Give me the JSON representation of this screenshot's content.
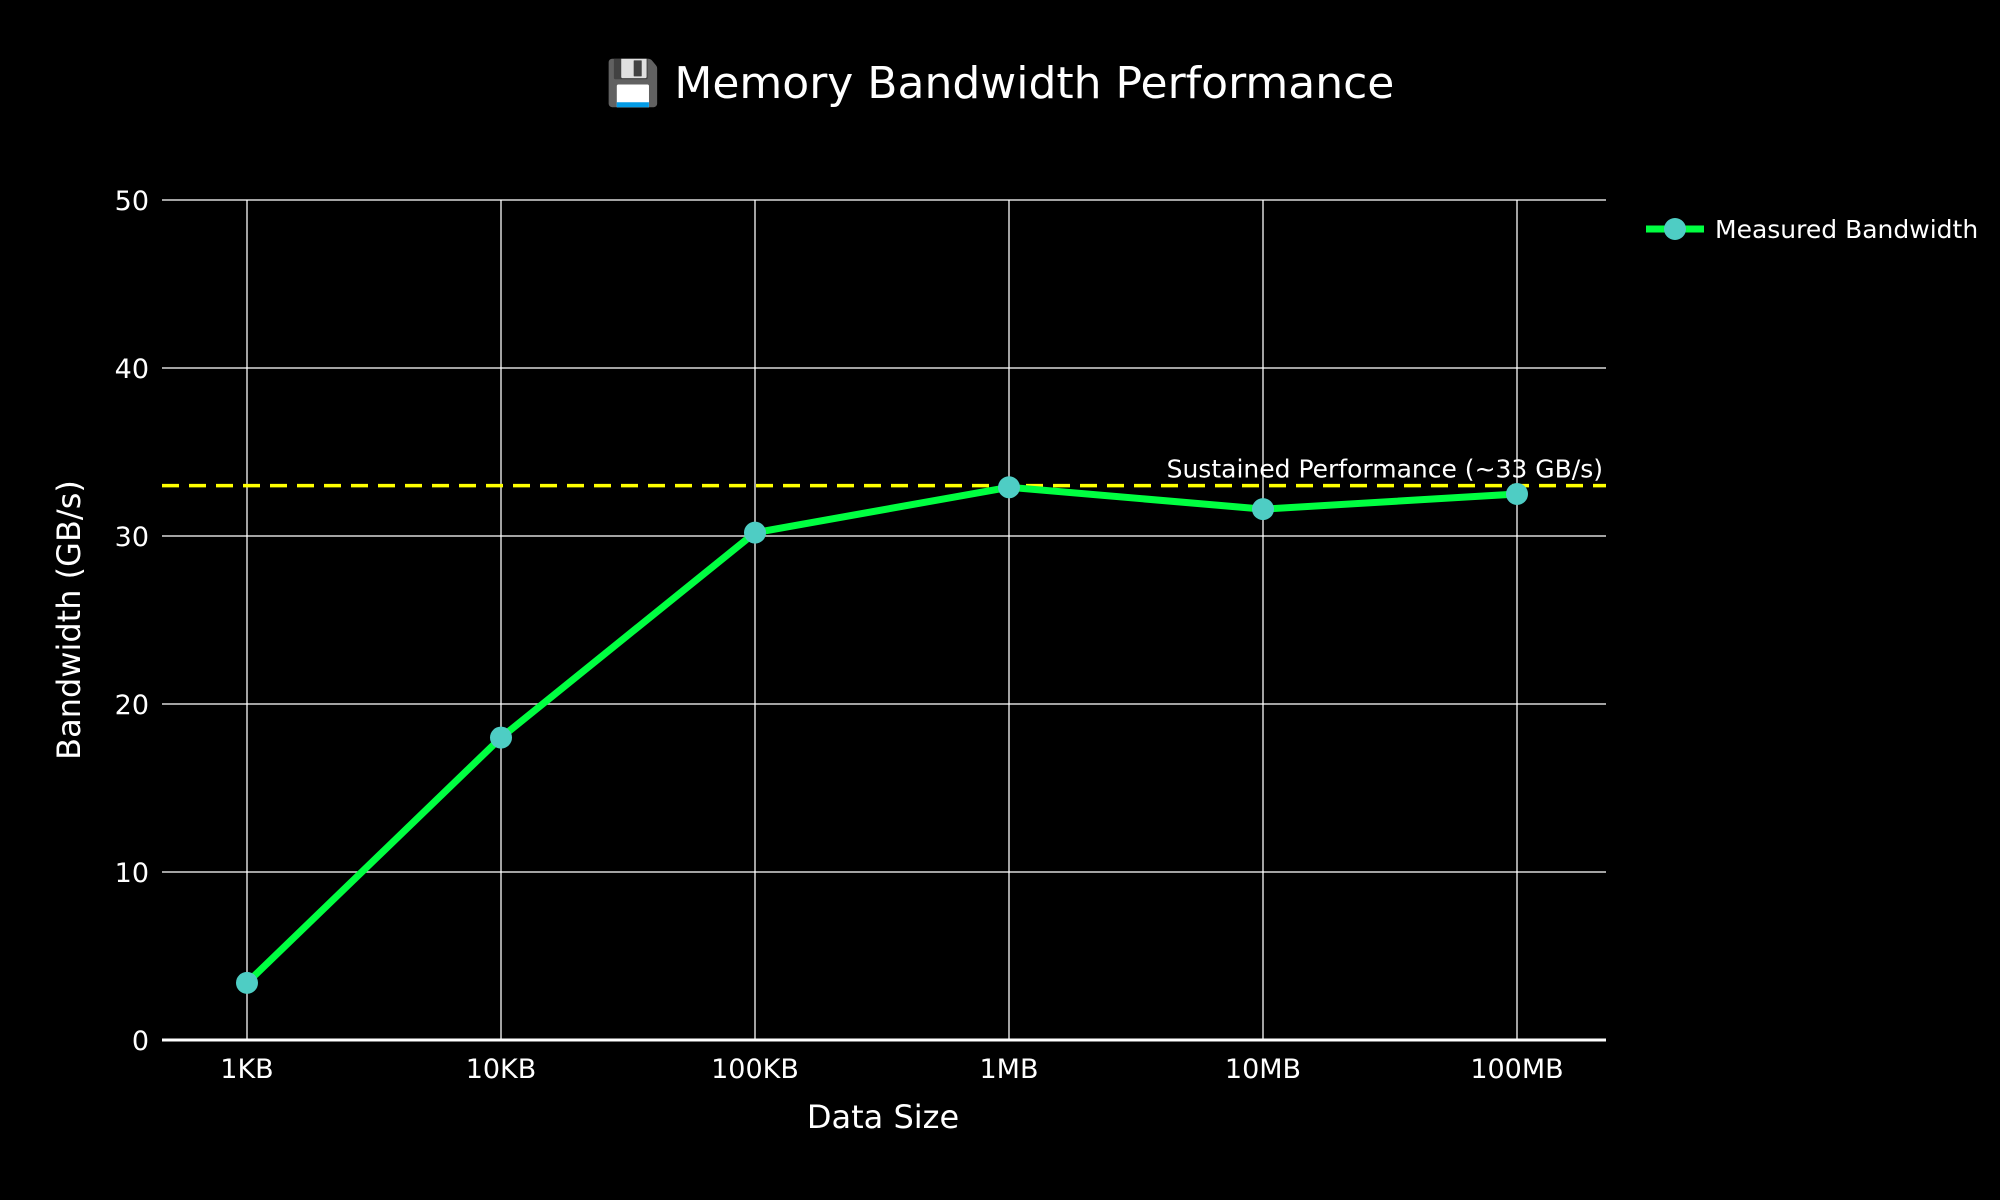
{
  "chart_data": {
    "type": "line",
    "title": "💾 Memory Bandwidth Performance",
    "xlabel": "Data Size",
    "ylabel": "Bandwidth (GB/s)",
    "categories": [
      "1KB",
      "10KB",
      "100KB",
      "1MB",
      "10MB",
      "100MB"
    ],
    "series": [
      {
        "name": "Measured Bandwidth",
        "values": [
          3.4,
          18.0,
          30.2,
          32.9,
          31.6,
          32.5
        ],
        "line_color": "#00ff41",
        "marker_color": "#4ecdc4"
      }
    ],
    "ylim": [
      0,
      50
    ],
    "yticks": [
      0,
      10,
      20,
      30,
      40,
      50
    ],
    "grid": true,
    "legend_position": "top-right",
    "reference_line": {
      "y": 33,
      "label": "Sustained Performance (~33 GB/s)",
      "color": "#ffff00",
      "style": "dashed"
    }
  },
  "colors": {
    "background": "#000000",
    "grid": "#ffffff",
    "text": "#ffffff"
  }
}
